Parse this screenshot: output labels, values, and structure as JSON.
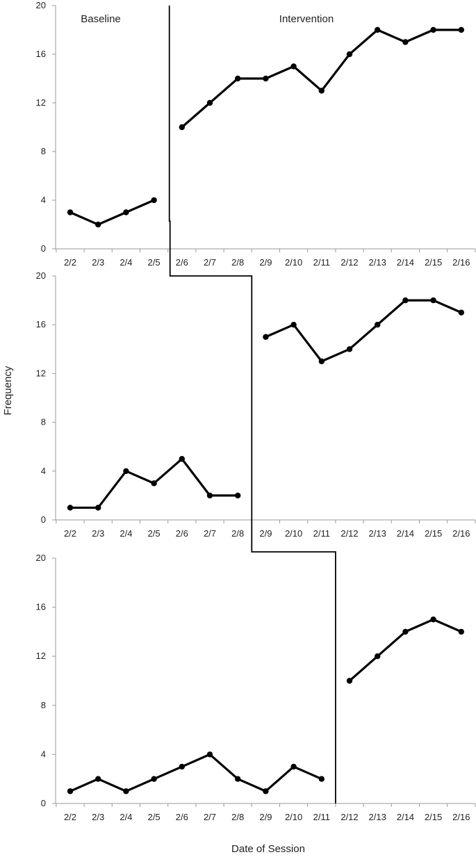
{
  "figure": {
    "ylabel": "Frequency",
    "xlabel": "Date of Session",
    "phase_labels": {
      "baseline": "Baseline",
      "intervention": "Intervention"
    }
  },
  "chart_data": [
    {
      "type": "line",
      "categories": [
        "2/2",
        "2/3",
        "2/4",
        "2/5",
        "2/6",
        "2/7",
        "2/8",
        "2/9",
        "2/10",
        "2/11",
        "2/12",
        "2/13",
        "2/14",
        "2/15",
        "2/16"
      ],
      "ylim": [
        0,
        20
      ],
      "yticks": [
        0,
        4,
        8,
        12,
        16,
        20
      ],
      "grid": false,
      "phase_change_after": "2/5",
      "series": [
        {
          "phase": "baseline",
          "points": [
            [
              "2/2",
              3
            ],
            [
              "2/3",
              2
            ],
            [
              "2/4",
              3
            ],
            [
              "2/5",
              4
            ]
          ]
        },
        {
          "phase": "intervention",
          "points": [
            [
              "2/6",
              10
            ],
            [
              "2/7",
              12
            ],
            [
              "2/8",
              14
            ],
            [
              "2/9",
              14
            ],
            [
              "2/10",
              15
            ],
            [
              "2/11",
              13
            ],
            [
              "2/12",
              16
            ],
            [
              "2/13",
              18
            ],
            [
              "2/14",
              17
            ],
            [
              "2/15",
              18
            ],
            [
              "2/16",
              18
            ]
          ]
        }
      ]
    },
    {
      "type": "line",
      "categories": [
        "2/2",
        "2/3",
        "2/4",
        "2/5",
        "2/6",
        "2/7",
        "2/8",
        "2/9",
        "2/10",
        "2/11",
        "2/12",
        "2/13",
        "2/14",
        "2/15",
        "2/16"
      ],
      "ylim": [
        0,
        20
      ],
      "yticks": [
        0,
        4,
        8,
        12,
        16,
        20
      ],
      "grid": false,
      "phase_change_after": "2/8",
      "series": [
        {
          "phase": "baseline",
          "points": [
            [
              "2/2",
              1
            ],
            [
              "2/3",
              1
            ],
            [
              "2/4",
              4
            ],
            [
              "2/5",
              3
            ],
            [
              "2/6",
              5
            ],
            [
              "2/7",
              2
            ],
            [
              "2/8",
              2
            ]
          ]
        },
        {
          "phase": "intervention",
          "points": [
            [
              "2/9",
              15
            ],
            [
              "2/10",
              16
            ],
            [
              "2/11",
              13
            ],
            [
              "2/12",
              14
            ],
            [
              "2/13",
              16
            ],
            [
              "2/14",
              18
            ],
            [
              "2/15",
              18
            ],
            [
              "2/16",
              17
            ]
          ]
        }
      ]
    },
    {
      "type": "line",
      "categories": [
        "2/2",
        "2/3",
        "2/4",
        "2/5",
        "2/6",
        "2/7",
        "2/8",
        "2/9",
        "2/10",
        "2/11",
        "2/12",
        "2/13",
        "2/14",
        "2/15",
        "2/16"
      ],
      "ylim": [
        0,
        20
      ],
      "yticks": [
        0,
        4,
        8,
        12,
        16,
        20
      ],
      "grid": false,
      "phase_change_after": "2/11",
      "series": [
        {
          "phase": "baseline",
          "points": [
            [
              "2/2",
              1
            ],
            [
              "2/3",
              2
            ],
            [
              "2/4",
              1
            ],
            [
              "2/5",
              2
            ],
            [
              "2/6",
              3
            ],
            [
              "2/7",
              4
            ],
            [
              "2/8",
              2
            ],
            [
              "2/9",
              1
            ],
            [
              "2/10",
              3
            ],
            [
              "2/11",
              2
            ]
          ]
        },
        {
          "phase": "intervention",
          "points": [
            [
              "2/12",
              10
            ],
            [
              "2/13",
              12
            ],
            [
              "2/14",
              14
            ],
            [
              "2/15",
              15
            ],
            [
              "2/16",
              14
            ]
          ]
        }
      ]
    }
  ]
}
